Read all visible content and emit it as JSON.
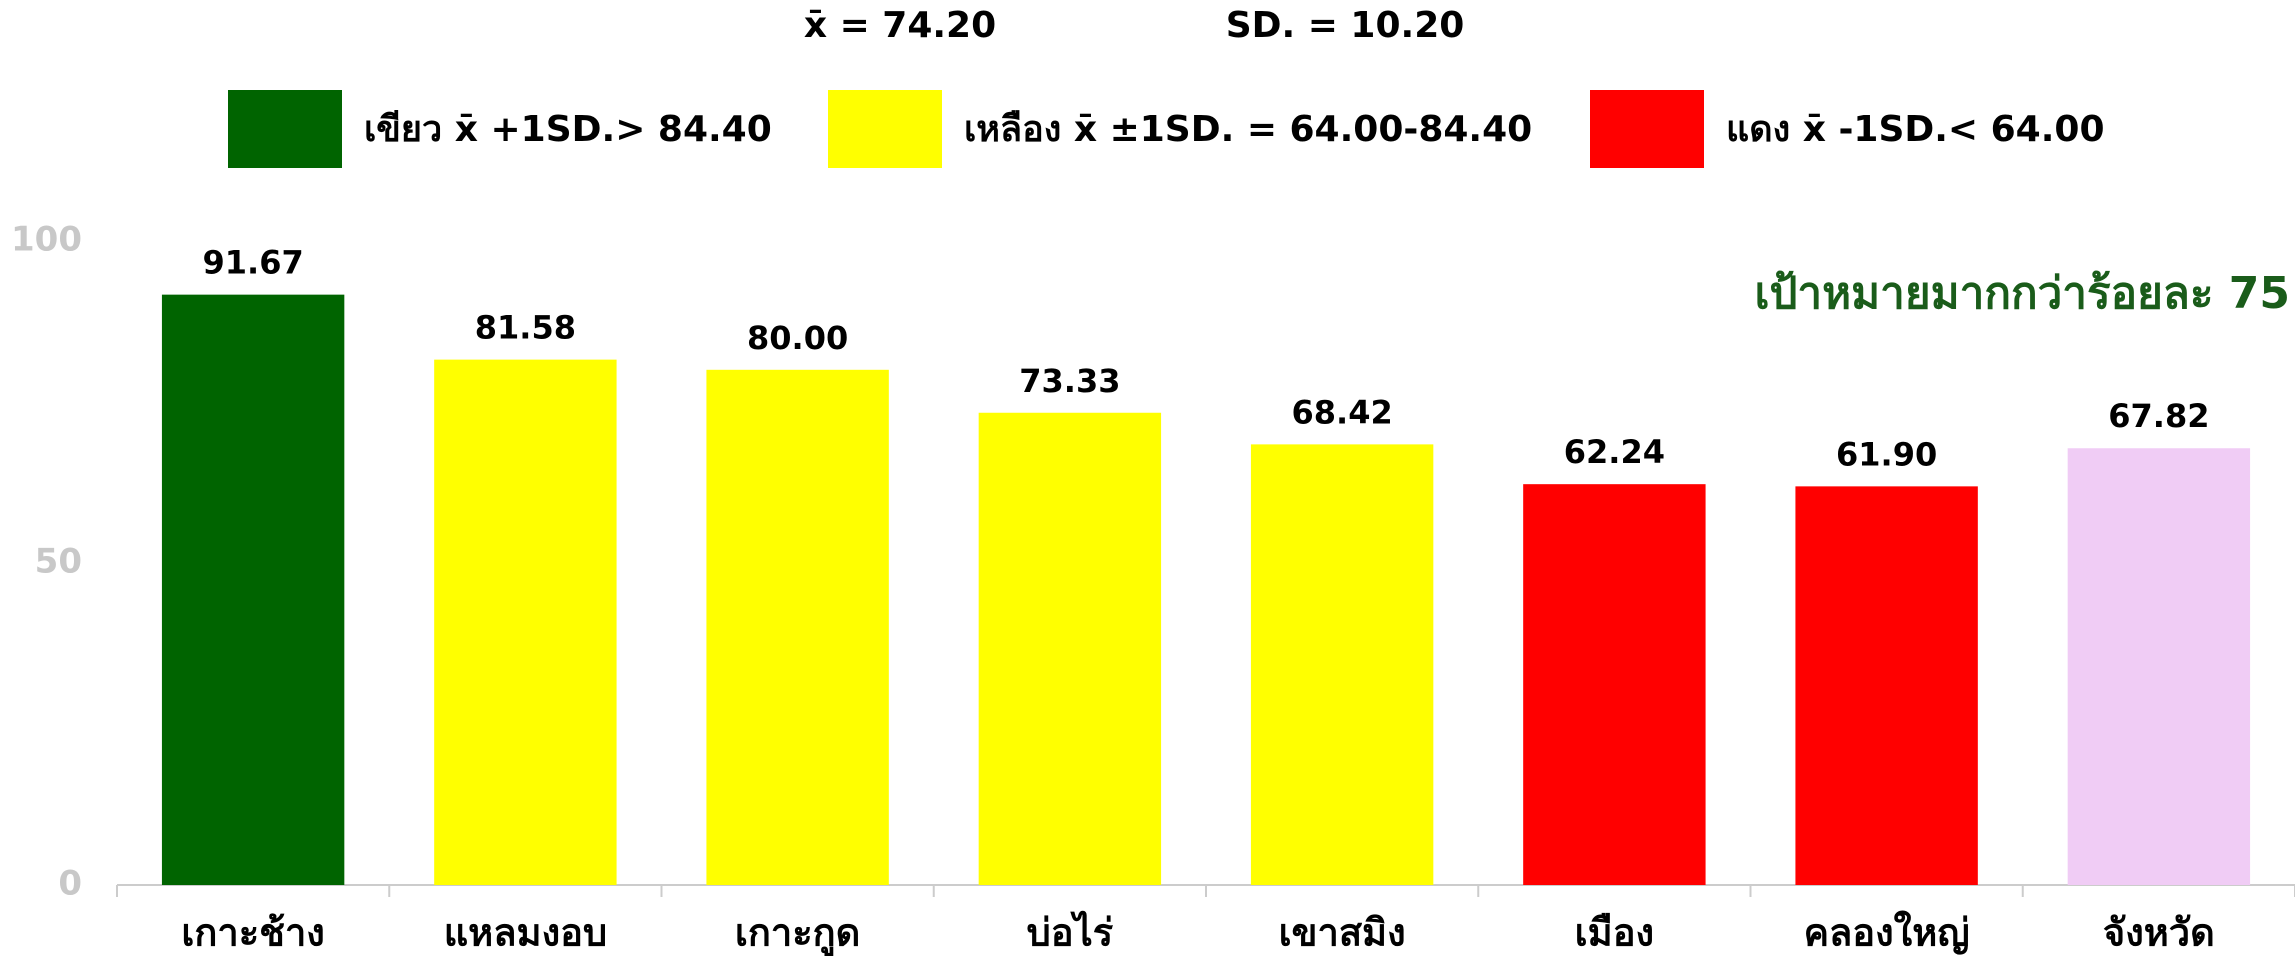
{
  "chart_data": {
    "type": "bar",
    "mean_label": "x̄ = 74.20",
    "sd_label": "SD. = 10.20",
    "legend": [
      {
        "label": "เขียว x̄ +1SD.> 84.40",
        "color": "#006400"
      },
      {
        "label": "เหลือง x̄ ±1SD. = 64.00-84.40",
        "color": "#ffff00"
      },
      {
        "label": "แดง x̄ -1SD.< 64.00",
        "color": "#ff0000"
      }
    ],
    "annotation": "เป้าหมายมากกว่าร้อยละ 75",
    "categories": [
      "เกาะช้าง",
      "แหลมงอบ",
      "เกาะกูด",
      "บ่อไร่",
      "เขาสมิง",
      "เมือง",
      "คลองใหญ่",
      "จังหวัด"
    ],
    "values": [
      91.67,
      81.58,
      80,
      73.33,
      68.42,
      62.24,
      61.9,
      67.82
    ],
    "value_labels": [
      "91.67",
      "81.58",
      "80.00",
      "73.33",
      "68.42",
      "62.24",
      "61.90",
      "67.82"
    ],
    "colors": [
      "#006400",
      "#ffff00",
      "#ffff00",
      "#ffff00",
      "#ffff00",
      "#ff0000",
      "#ff0000",
      "#f0ccf5"
    ],
    "ylim": [
      0,
      100
    ],
    "yticks": [
      0,
      50,
      100
    ]
  }
}
